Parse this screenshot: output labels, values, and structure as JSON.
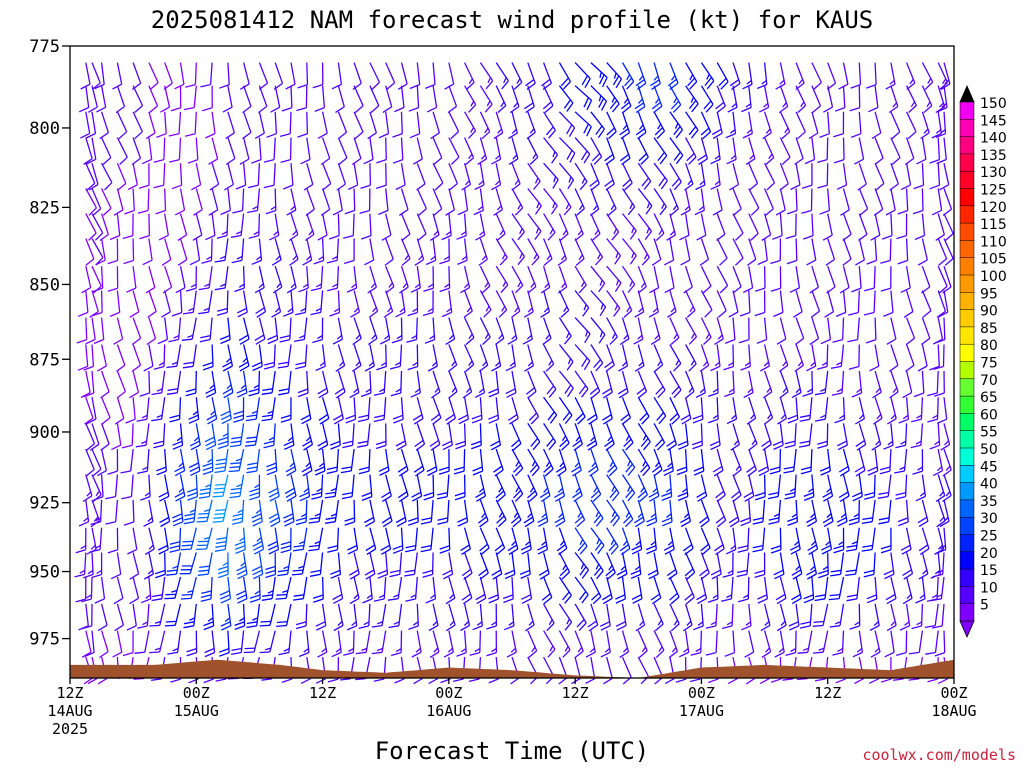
{
  "chart_data": {
    "type": "wind-barb-profile",
    "title": "2025081412 NAM forecast wind profile (kt) for KAUS",
    "xlabel": "Forecast Time (UTC)",
    "ylabel": "",
    "credit": "coolwx.com/models",
    "y_axis": {
      "unit": "hPa",
      "scale": "log",
      "range": [
        990,
        775
      ],
      "ticks": [
        775,
        800,
        825,
        850,
        875,
        900,
        925,
        950,
        975
      ]
    },
    "x_axis": {
      "range_hours": [
        0,
        84
      ],
      "ticks": [
        {
          "hour": 0,
          "lines": [
            "12Z",
            "14AUG",
            "2025"
          ]
        },
        {
          "hour": 12,
          "lines": [
            "00Z",
            "15AUG"
          ]
        },
        {
          "hour": 24,
          "lines": [
            "12Z"
          ]
        },
        {
          "hour": 36,
          "lines": [
            "00Z",
            "16AUG"
          ]
        },
        {
          "hour": 48,
          "lines": [
            "12Z"
          ]
        },
        {
          "hour": 60,
          "lines": [
            "00Z",
            "17AUG"
          ]
        },
        {
          "hour": 72,
          "lines": [
            "12Z"
          ]
        },
        {
          "hour": 84,
          "lines": [
            "00Z",
            "18AUG"
          ]
        }
      ]
    },
    "barb_levels_hpa": [
      780,
      787,
      795,
      803,
      811,
      819,
      827,
      835,
      844,
      852,
      861,
      870,
      879,
      888,
      897,
      906,
      915,
      924,
      934,
      943,
      952,
      962,
      972,
      982
    ],
    "speed_keyframes": [
      {
        "hour": 0,
        "speeds": [
          12,
          12,
          12,
          11,
          11,
          10,
          10,
          10,
          9,
          9,
          9,
          9,
          9,
          10,
          11,
          12,
          13,
          14,
          14,
          14,
          13,
          12,
          10,
          8
        ]
      },
      {
        "hour": 6,
        "speeds": [
          10,
          10,
          10,
          10,
          9,
          9,
          9,
          8,
          8,
          8,
          8,
          8,
          8,
          9,
          9,
          10,
          11,
          11,
          11,
          11,
          10,
          10,
          9,
          7
        ]
      },
      {
        "hour": 11,
        "speeds": [
          9,
          9,
          9,
          9,
          9,
          9,
          9,
          10,
          11,
          12,
          14,
          16,
          19,
          22,
          25,
          27,
          29,
          30,
          30,
          28,
          25,
          22,
          18,
          12
        ]
      },
      {
        "hour": 15,
        "speeds": [
          11,
          10,
          10,
          10,
          11,
          12,
          13,
          15,
          17,
          19,
          21,
          24,
          27,
          30,
          34,
          38,
          40,
          40,
          38,
          35,
          31,
          26,
          20,
          13
        ]
      },
      {
        "hour": 20,
        "speeds": [
          12,
          11,
          11,
          11,
          12,
          13,
          14,
          15,
          16,
          17,
          18,
          19,
          21,
          23,
          25,
          27,
          29,
          30,
          29,
          27,
          24,
          21,
          17,
          12
        ]
      },
      {
        "hour": 27,
        "speeds": [
          10,
          10,
          10,
          10,
          10,
          10,
          11,
          12,
          13,
          14,
          15,
          16,
          17,
          18,
          19,
          20,
          21,
          21,
          20,
          19,
          17,
          15,
          13,
          10
        ]
      },
      {
        "hour": 36,
        "speeds": [
          12,
          12,
          12,
          12,
          12,
          12,
          13,
          13,
          14,
          14,
          15,
          16,
          17,
          18,
          19,
          20,
          21,
          21,
          20,
          19,
          17,
          15,
          13,
          10
        ]
      },
      {
        "hour": 44,
        "speeds": [
          18,
          18,
          17,
          16,
          15,
          14,
          14,
          14,
          14,
          15,
          16,
          17,
          18,
          20,
          22,
          24,
          25,
          25,
          24,
          22,
          20,
          17,
          14,
          11
        ]
      },
      {
        "hour": 50,
        "speeds": [
          24,
          24,
          22,
          20,
          18,
          16,
          15,
          14,
          14,
          15,
          16,
          18,
          20,
          22,
          24,
          26,
          27,
          27,
          26,
          24,
          21,
          18,
          15,
          11
        ]
      },
      {
        "hour": 57,
        "speeds": [
          27,
          26,
          24,
          21,
          18,
          15,
          13,
          12,
          12,
          13,
          14,
          16,
          18,
          20,
          22,
          24,
          25,
          25,
          24,
          22,
          20,
          17,
          14,
          11
        ]
      },
      {
        "hour": 63,
        "speeds": [
          18,
          17,
          16,
          14,
          12,
          11,
          10,
          10,
          10,
          11,
          12,
          13,
          14,
          15,
          16,
          17,
          18,
          18,
          17,
          16,
          15,
          13,
          11,
          9
        ]
      },
      {
        "hour": 70,
        "speeds": [
          12,
          12,
          11,
          11,
          10,
          10,
          10,
          10,
          10,
          11,
          12,
          14,
          16,
          18,
          20,
          22,
          24,
          25,
          25,
          24,
          22,
          19,
          15,
          10
        ]
      },
      {
        "hour": 76,
        "speeds": [
          12,
          12,
          12,
          11,
          11,
          10,
          10,
          10,
          10,
          10,
          11,
          12,
          13,
          15,
          17,
          19,
          21,
          22,
          22,
          21,
          19,
          16,
          13,
          9
        ]
      },
      {
        "hour": 84,
        "speeds": [
          14,
          14,
          13,
          12,
          12,
          11,
          11,
          10,
          10,
          10,
          10,
          10,
          11,
          12,
          13,
          14,
          15,
          15,
          15,
          14,
          13,
          11,
          10,
          8
        ]
      }
    ],
    "direction_keyframes": [
      {
        "hour": 0,
        "dir_deg": 165
      },
      {
        "hour": 12,
        "dir_deg": 180
      },
      {
        "hour": 24,
        "dir_deg": 175
      },
      {
        "hour": 36,
        "dir_deg": 170
      },
      {
        "hour": 48,
        "dir_deg": 150
      },
      {
        "hour": 60,
        "dir_deg": 165
      },
      {
        "hour": 72,
        "dir_deg": 175
      },
      {
        "hour": 84,
        "dir_deg": 170
      }
    ],
    "surface_pressure": [
      {
        "hour": 0,
        "hpa": 985
      },
      {
        "hour": 8,
        "hpa": 985
      },
      {
        "hour": 14,
        "hpa": 983
      },
      {
        "hour": 20,
        "hpa": 985
      },
      {
        "hour": 24,
        "hpa": 987
      },
      {
        "hour": 30,
        "hpa": 988
      },
      {
        "hour": 36,
        "hpa": 986
      },
      {
        "hour": 42,
        "hpa": 987
      },
      {
        "hour": 48,
        "hpa": 989
      },
      {
        "hour": 54,
        "hpa": 990
      },
      {
        "hour": 60,
        "hpa": 986
      },
      {
        "hour": 66,
        "hpa": 985
      },
      {
        "hour": 72,
        "hpa": 986
      },
      {
        "hour": 78,
        "hpa": 987
      },
      {
        "hour": 84,
        "hpa": 983
      }
    ],
    "ground_color": "#a0522d",
    "colorbar": {
      "labels": [
        150,
        145,
        140,
        135,
        130,
        125,
        120,
        115,
        110,
        105,
        100,
        95,
        90,
        85,
        80,
        75,
        70,
        65,
        60,
        55,
        50,
        45,
        40,
        35,
        30,
        25,
        20,
        15,
        10,
        5
      ],
      "colors": [
        "#f200f2",
        "#ff00b4",
        "#ff0080",
        "#ff004c",
        "#ff0026",
        "#ff0000",
        "#ff2600",
        "#ff4c00",
        "#ff6600",
        "#ff8000",
        "#ff9900",
        "#ffb300",
        "#ffcc00",
        "#ffe600",
        "#ffff00",
        "#b3ff00",
        "#66ff33",
        "#33ff33",
        "#00ff66",
        "#00ffa6",
        "#00ffd9",
        "#00ccff",
        "#0099ff",
        "#0066ff",
        "#0044ff",
        "#0022ff",
        "#0000ff",
        "#3300ff",
        "#5500ff",
        "#8000ff"
      ]
    }
  }
}
